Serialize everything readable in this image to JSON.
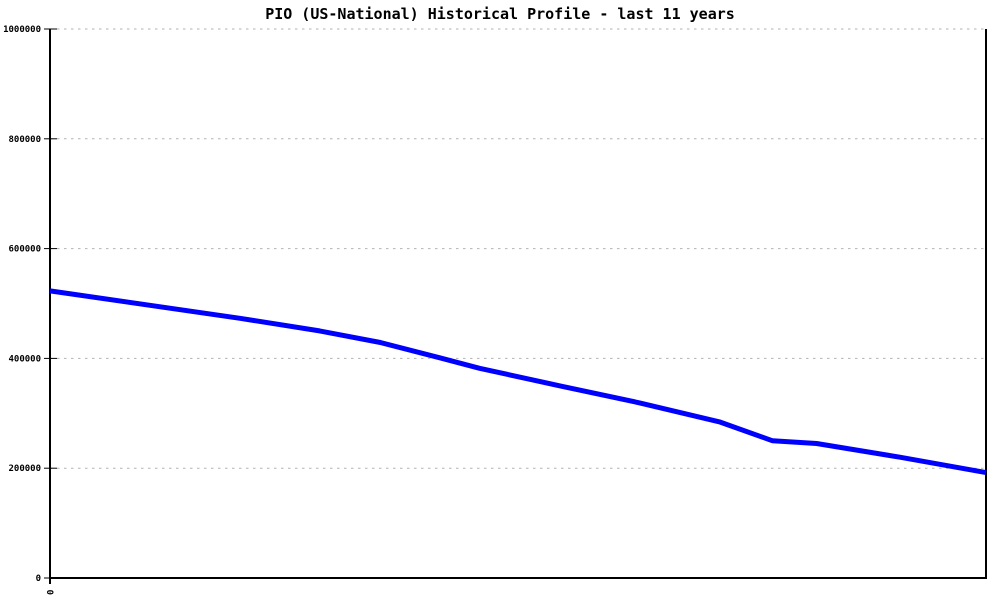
{
  "page": {
    "background_color": "#ffffff"
  },
  "chart_data": {
    "type": "line",
    "title": "PIO (US-National) Historical Profile - last 11 years",
    "xlabel": "",
    "ylabel": "",
    "xlim": [
      0,
      10
    ],
    "ylim": [
      0,
      1000000
    ],
    "ytick_values": [
      0,
      200000,
      400000,
      600000,
      800000,
      1000000
    ],
    "ytick_labels": [
      "0",
      "200000",
      "400000",
      "600000",
      "800000",
      "1000000"
    ],
    "xticks": [
      {
        "x": 0,
        "label": "0"
      }
    ],
    "grid": true,
    "legend": "none",
    "axis_color": "#000000",
    "grid_color": "#b2b2b2",
    "text_color": "#000000",
    "series": [
      {
        "name": "PIO (US-National)",
        "color": "#0000ff",
        "line_width": 5,
        "x": [
          0,
          2.03,
          2.88,
          3.53,
          4.17,
          4.59,
          5.45,
          6.3,
          7.16,
          7.72,
          8.19,
          9.08,
          10
        ],
        "values": [
          523000,
          473000,
          450000,
          429000,
          401000,
          382000,
          350000,
          319000,
          284000,
          250000,
          245000,
          220000,
          192000
        ]
      }
    ]
  }
}
